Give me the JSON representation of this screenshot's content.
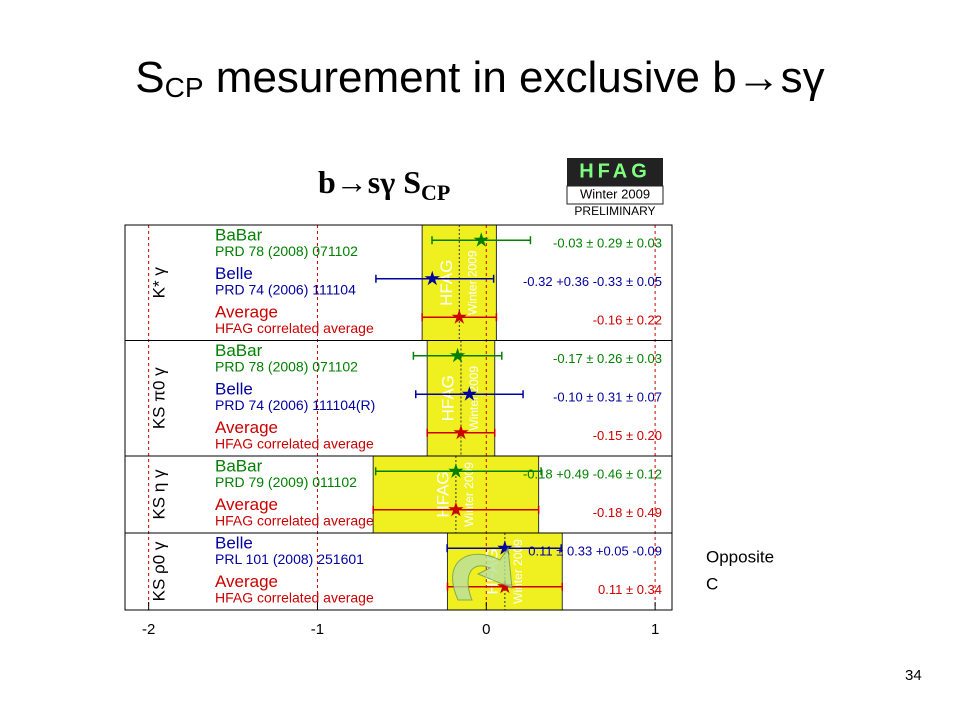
{
  "title": {
    "main": "S",
    "sub": "CP",
    "rest": " mesurement in exclusive b→sγ"
  },
  "annotation": [
    "Opposite",
    "C"
  ],
  "page_number": "34",
  "chart_data": {
    "type": "forest",
    "title": "b→sγ S",
    "title_sub": "CP",
    "badge": [
      "HFAG",
      "Winter 2009",
      "PRELIMINARY"
    ],
    "xlim": [
      -2.14,
      1.1
    ],
    "xticks": [
      -2,
      -1,
      0,
      1
    ],
    "grid": true,
    "groups": [
      {
        "label": "K* γ",
        "rows": [
          {
            "experiment": "BaBar",
            "reference": "PRD 78 (2008) 071102",
            "color": "#008000",
            "value": -0.03,
            "stat_plus": 0.29,
            "stat_minus": 0.29,
            "syst_plus": 0.03,
            "syst_minus": 0.03,
            "value_label": "-0.03 ± 0.29 ± 0.03"
          },
          {
            "experiment": "Belle",
            "reference": "PRD 74 (2006) 111104",
            "color": "#0000a0",
            "value": -0.32,
            "stat_plus": 0.36,
            "stat_minus": 0.33,
            "syst_plus": 0.05,
            "syst_minus": 0.05,
            "value_label": "-0.32 +0.36 -0.33 ± 0.05"
          },
          {
            "experiment": "Average",
            "reference": "HFAG correlated average",
            "color": "#cc0000",
            "value": -0.16,
            "stat_plus": 0.22,
            "stat_minus": 0.22,
            "value_label": "-0.16 ± 0.22"
          }
        ]
      },
      {
        "label": "KS π0 γ",
        "rows": [
          {
            "experiment": "BaBar",
            "reference": "PRD 78 (2008) 071102",
            "color": "#008000",
            "value": -0.17,
            "stat_plus": 0.26,
            "stat_minus": 0.26,
            "syst_plus": 0.03,
            "syst_minus": 0.03,
            "value_label": "-0.17 ± 0.26 ± 0.03"
          },
          {
            "experiment": "Belle",
            "reference": "PRD 74 (2006) 111104(R)",
            "color": "#0000a0",
            "value": -0.1,
            "stat_plus": 0.31,
            "stat_minus": 0.31,
            "syst_plus": 0.07,
            "syst_minus": 0.07,
            "value_label": "-0.10 ± 0.31 ± 0.07"
          },
          {
            "experiment": "Average",
            "reference": "HFAG correlated average",
            "color": "#cc0000",
            "value": -0.15,
            "stat_plus": 0.2,
            "stat_minus": 0.2,
            "value_label": "-0.15 ± 0.20"
          }
        ]
      },
      {
        "label": "KS η γ",
        "rows": [
          {
            "experiment": "BaBar",
            "reference": "PRD 79 (2009) 011102",
            "color": "#008000",
            "value": -0.18,
            "stat_plus": 0.49,
            "stat_minus": 0.46,
            "syst_plus": 0.12,
            "syst_minus": 0.12,
            "value_label": "-0.18 +0.49 -0.46 ± 0.12"
          },
          {
            "experiment": "Average",
            "reference": "HFAG correlated average",
            "color": "#cc0000",
            "value": -0.18,
            "stat_plus": 0.49,
            "stat_minus": 0.49,
            "value_label": "-0.18 ± 0.49"
          }
        ]
      },
      {
        "label": "KS ρ0 γ",
        "rows": [
          {
            "experiment": "Belle",
            "reference": "PRL 101 (2008) 251601",
            "color": "#0000a0",
            "value": 0.11,
            "stat_plus": 0.33,
            "stat_minus": 0.33,
            "syst_plus": 0.05,
            "syst_minus": 0.09,
            "value_label": "0.11 ± 0.33 +0.05 -0.09"
          },
          {
            "experiment": "Average",
            "reference": "HFAG correlated average",
            "color": "#cc0000",
            "value": 0.11,
            "stat_plus": 0.34,
            "stat_minus": 0.34,
            "value_label": "0.11 ± 0.34"
          }
        ]
      }
    ]
  }
}
